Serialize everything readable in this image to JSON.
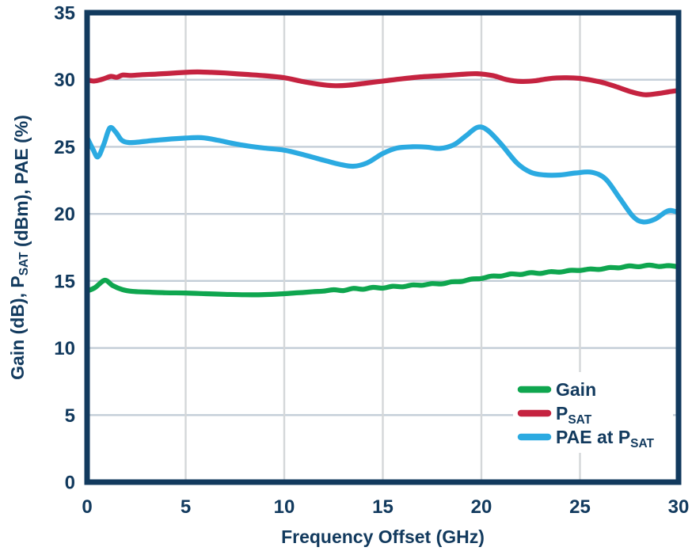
{
  "colors": {
    "navy": "#123A5E",
    "green": "#0FA64F",
    "red": "#C52340",
    "cyan": "#2BAAE1",
    "grid_horizontal": "#C3CDD7",
    "grid_vertical": "#D4D7D9",
    "background": "#FFFFFF"
  },
  "chart_data": {
    "type": "line",
    "title": "",
    "xlabel": "Frequency Offset (GHz)",
    "ylabel": "Gain (dB), P_SAT (dBm), PAE (%)",
    "ylabel_parts": [
      {
        "text": "Gain (dB), P",
        "sub": false
      },
      {
        "text": "SAT",
        "sub": true
      },
      {
        "text": " (dBm), PAE (%)",
        "sub": false
      }
    ],
    "xlim": [
      0,
      30
    ],
    "ylim": [
      0,
      35
    ],
    "xticks": [
      0,
      5,
      10,
      15,
      20,
      25,
      30
    ],
    "yticks": [
      0,
      5,
      10,
      15,
      20,
      25,
      30,
      35
    ],
    "grid": true,
    "legend": {
      "position": "lower-right",
      "entries": [
        {
          "color_key": "green",
          "parts": [
            {
              "text": "Gain",
              "sub": false
            }
          ]
        },
        {
          "color_key": "red",
          "parts": [
            {
              "text": "P",
              "sub": false
            },
            {
              "text": "SAT",
              "sub": true
            }
          ]
        },
        {
          "color_key": "cyan",
          "parts": [
            {
              "text": "PAE at P",
              "sub": false
            },
            {
              "text": "SAT",
              "sub": true
            }
          ]
        }
      ]
    },
    "series": [
      {
        "name": "Gain",
        "color_key": "green",
        "points": [
          [
            0,
            14.25
          ],
          [
            0.4,
            14.5
          ],
          [
            0.9,
            15.05
          ],
          [
            1.3,
            14.65
          ],
          [
            1.8,
            14.35
          ],
          [
            2.3,
            14.22
          ],
          [
            3,
            14.17
          ],
          [
            4,
            14.12
          ],
          [
            5,
            14.1
          ],
          [
            6,
            14.05
          ],
          [
            7,
            14.0
          ],
          [
            8,
            13.97
          ],
          [
            9,
            13.98
          ],
          [
            10,
            14.05
          ],
          [
            10.5,
            14.1
          ],
          [
            11,
            14.14
          ],
          [
            11.5,
            14.2
          ],
          [
            12,
            14.24
          ],
          [
            12.5,
            14.34
          ],
          [
            13,
            14.28
          ],
          [
            13.5,
            14.44
          ],
          [
            14,
            14.38
          ],
          [
            14.5,
            14.52
          ],
          [
            15,
            14.46
          ],
          [
            15.5,
            14.6
          ],
          [
            16,
            14.56
          ],
          [
            16.5,
            14.7
          ],
          [
            17,
            14.68
          ],
          [
            17.5,
            14.8
          ],
          [
            18,
            14.78
          ],
          [
            18.5,
            14.94
          ],
          [
            19,
            14.96
          ],
          [
            19.5,
            15.14
          ],
          [
            20,
            15.18
          ],
          [
            20.5,
            15.36
          ],
          [
            21,
            15.36
          ],
          [
            21.5,
            15.52
          ],
          [
            22,
            15.48
          ],
          [
            22.5,
            15.62
          ],
          [
            23,
            15.56
          ],
          [
            23.5,
            15.69
          ],
          [
            24,
            15.66
          ],
          [
            24.5,
            15.79
          ],
          [
            25,
            15.78
          ],
          [
            25.5,
            15.89
          ],
          [
            26,
            15.86
          ],
          [
            26.5,
            16.0
          ],
          [
            27,
            15.98
          ],
          [
            27.5,
            16.12
          ],
          [
            28,
            16.06
          ],
          [
            28.5,
            16.18
          ],
          [
            29,
            16.08
          ],
          [
            29.5,
            16.14
          ],
          [
            30,
            16.05
          ]
        ]
      },
      {
        "name": "PSAT",
        "color_key": "red",
        "points": [
          [
            0,
            30.0
          ],
          [
            0.35,
            29.9
          ],
          [
            0.8,
            30.05
          ],
          [
            1.2,
            30.25
          ],
          [
            1.5,
            30.18
          ],
          [
            1.8,
            30.35
          ],
          [
            2.2,
            30.32
          ],
          [
            2.8,
            30.38
          ],
          [
            3.5,
            30.42
          ],
          [
            4.2,
            30.48
          ],
          [
            5,
            30.55
          ],
          [
            5.6,
            30.58
          ],
          [
            6.3,
            30.55
          ],
          [
            7,
            30.5
          ],
          [
            8,
            30.4
          ],
          [
            9,
            30.3
          ],
          [
            10,
            30.15
          ],
          [
            11,
            29.85
          ],
          [
            12,
            29.62
          ],
          [
            12.6,
            29.55
          ],
          [
            13.3,
            29.6
          ],
          [
            14,
            29.72
          ],
          [
            15,
            29.9
          ],
          [
            16,
            30.08
          ],
          [
            17,
            30.22
          ],
          [
            18,
            30.3
          ],
          [
            19,
            30.4
          ],
          [
            19.8,
            30.45
          ],
          [
            20.6,
            30.3
          ],
          [
            21.3,
            30.0
          ],
          [
            22,
            29.87
          ],
          [
            22.7,
            29.92
          ],
          [
            23.4,
            30.08
          ],
          [
            24.2,
            30.15
          ],
          [
            25,
            30.1
          ],
          [
            26,
            29.85
          ],
          [
            26.8,
            29.5
          ],
          [
            27.6,
            29.1
          ],
          [
            28.3,
            28.88
          ],
          [
            29,
            28.98
          ],
          [
            29.5,
            29.1
          ],
          [
            30,
            29.2
          ]
        ]
      },
      {
        "name": "PAE at PSAT",
        "color_key": "cyan",
        "points": [
          [
            0,
            25.7
          ],
          [
            0.3,
            24.8
          ],
          [
            0.55,
            24.25
          ],
          [
            0.85,
            25.2
          ],
          [
            1.15,
            26.4
          ],
          [
            1.45,
            26.1
          ],
          [
            1.75,
            25.5
          ],
          [
            2.1,
            25.32
          ],
          [
            2.6,
            25.35
          ],
          [
            3.2,
            25.45
          ],
          [
            4,
            25.55
          ],
          [
            5,
            25.65
          ],
          [
            5.8,
            25.68
          ],
          [
            6.6,
            25.5
          ],
          [
            7.4,
            25.25
          ],
          [
            8.2,
            25.05
          ],
          [
            9,
            24.9
          ],
          [
            10,
            24.75
          ],
          [
            11,
            24.4
          ],
          [
            12,
            24.0
          ],
          [
            12.8,
            23.7
          ],
          [
            13.5,
            23.55
          ],
          [
            14.2,
            23.8
          ],
          [
            15,
            24.5
          ],
          [
            15.7,
            24.9
          ],
          [
            16.5,
            25.0
          ],
          [
            17.2,
            24.98
          ],
          [
            17.9,
            24.88
          ],
          [
            18.6,
            25.15
          ],
          [
            19.2,
            25.8
          ],
          [
            19.8,
            26.45
          ],
          [
            20.3,
            26.25
          ],
          [
            21,
            25.2
          ],
          [
            21.8,
            23.8
          ],
          [
            22.5,
            23.1
          ],
          [
            23.2,
            22.9
          ],
          [
            24,
            22.9
          ],
          [
            24.8,
            23.05
          ],
          [
            25.6,
            23.1
          ],
          [
            26.3,
            22.6
          ],
          [
            27,
            21.2
          ],
          [
            27.7,
            19.8
          ],
          [
            28.2,
            19.4
          ],
          [
            28.8,
            19.6
          ],
          [
            29.3,
            20.1
          ],
          [
            29.6,
            20.25
          ],
          [
            30,
            20.1
          ]
        ]
      }
    ]
  }
}
